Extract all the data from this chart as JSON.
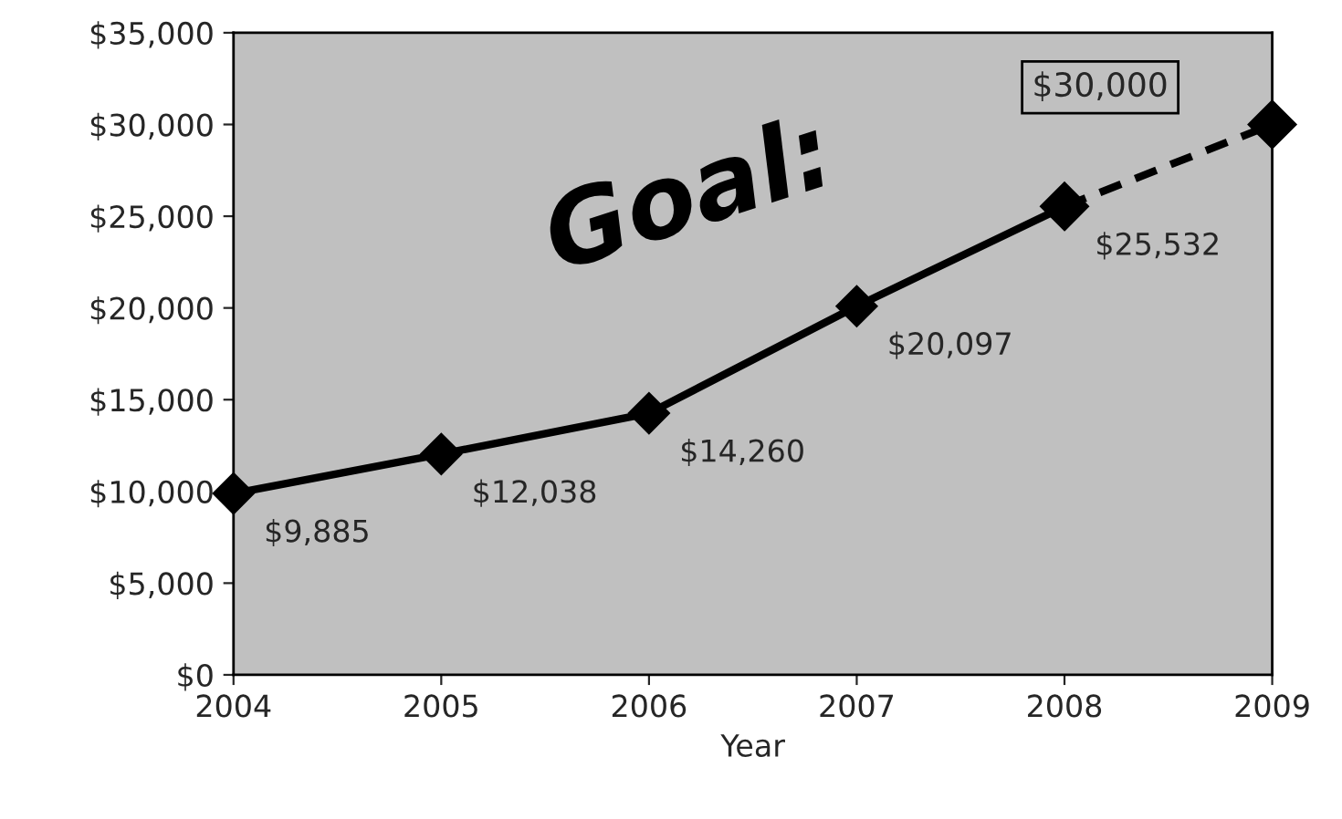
{
  "chart_data": {
    "type": "line",
    "xlabel": "Year",
    "x": [
      2004,
      2005,
      2006,
      2007,
      2008,
      2009
    ],
    "series": [
      {
        "color": "#000000",
        "line_style": "solid",
        "values": [
          9885,
          12038,
          14260,
          20097,
          25532,
          null
        ],
        "value_labels": [
          "$9,885",
          "$12,038",
          "$14,260",
          "$20,097",
          "$25,532",
          null
        ]
      },
      {
        "color": "#000000",
        "line_style": "dashed",
        "values": [
          null,
          null,
          null,
          null,
          25532,
          30000
        ]
      }
    ],
    "annotations": [
      "Goal:",
      "$30,000"
    ],
    "xlim": [
      2004,
      2009
    ],
    "xticks": [
      2004,
      2005,
      2006,
      2007,
      2008,
      2009
    ],
    "ylim": [
      0,
      35000
    ],
    "yticks": [
      {
        "value": 0,
        "label": "$0"
      },
      {
        "value": 5000,
        "label": "$5,000"
      },
      {
        "value": 10000,
        "label": "$10,000"
      },
      {
        "value": 15000,
        "label": "$15,000"
      },
      {
        "value": 20000,
        "label": "$20,000"
      },
      {
        "value": 25000,
        "label": "$25,000"
      },
      {
        "value": 30000,
        "label": "$30,000"
      },
      {
        "value": 35000,
        "label": "$35,000"
      }
    ],
    "marker": "diamond",
    "grid": false,
    "legend": false
  }
}
